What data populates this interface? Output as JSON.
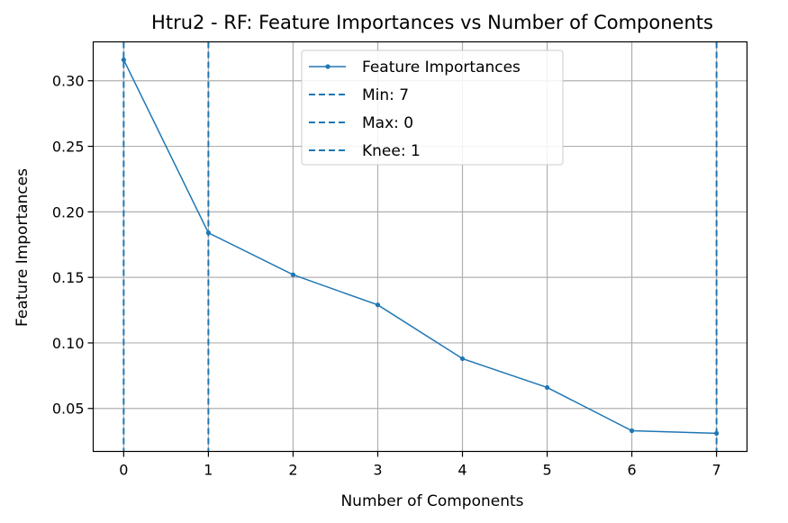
{
  "chart_data": {
    "type": "line",
    "title": "Htru2 - RF: Feature Importances vs Number of Components",
    "xlabel": "Number of Components",
    "ylabel": "Feature Importances",
    "x": [
      0,
      1,
      2,
      3,
      4,
      5,
      6,
      7
    ],
    "xlim": [
      -0.36,
      7.36
    ],
    "ylim": [
      0.0172,
      0.3297
    ],
    "xticks": [
      "0",
      "1",
      "2",
      "3",
      "4",
      "5",
      "6",
      "7"
    ],
    "xtick_values": [
      0,
      1,
      2,
      3,
      4,
      5,
      6,
      7
    ],
    "yticks": [
      "0.05",
      "0.10",
      "0.15",
      "0.20",
      "0.25",
      "0.30"
    ],
    "ytick_values": [
      0.05,
      0.1,
      0.15,
      0.2,
      0.25,
      0.3
    ],
    "grid": true,
    "legend_position": "upper-center",
    "series": [
      {
        "name": "Feature Importances",
        "kind": "line-marker",
        "color": "#1f77b4",
        "values": [
          0.316,
          0.184,
          0.152,
          0.129,
          0.088,
          0.066,
          0.033,
          0.031
        ]
      }
    ],
    "vlines": [
      {
        "name": "Min: 7",
        "x": 7,
        "color": "#1f77b4",
        "style": "dashed"
      },
      {
        "name": "Max: 0",
        "x": 0,
        "color": "#1f77b4",
        "style": "dashed"
      },
      {
        "name": "Knee: 1",
        "x": 1,
        "color": "#1f77b4",
        "style": "dashed"
      }
    ]
  }
}
